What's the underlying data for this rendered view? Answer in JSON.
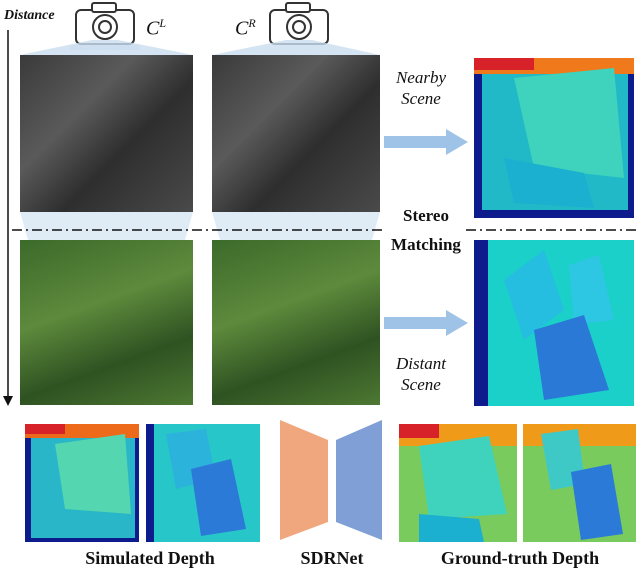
{
  "distance_label": "Distance",
  "camera_left": {
    "symbol": "C",
    "superscript": "L"
  },
  "camera_right": {
    "symbol": "C",
    "superscript": "R"
  },
  "nearby_scene": [
    "Nearby",
    "Scene"
  ],
  "stereo_matching": [
    "Stereo",
    "Matching"
  ],
  "distant_scene": [
    "Distant",
    "Scene"
  ],
  "bottom_labels": {
    "simulated": "Simulated Depth",
    "sdrnet": "SDRNet",
    "ground_truth": "Ground-truth Depth"
  },
  "colors": {
    "arrow_fill": "#9fc3e6",
    "encoder": "#f0a77e",
    "decoder": "#7f9fd6",
    "projection": "#c9ddef"
  }
}
